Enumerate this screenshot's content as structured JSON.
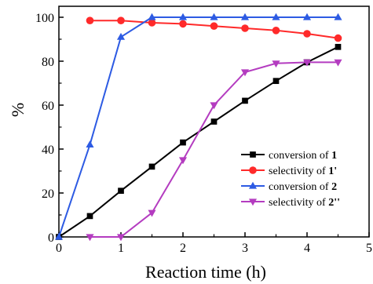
{
  "chart_data": {
    "type": "line",
    "xlabel": "Reaction time (h)",
    "ylabel": "%",
    "xlim": [
      0,
      5
    ],
    "ylim": [
      0,
      105
    ],
    "xticks": [
      0,
      1,
      2,
      3,
      4,
      5
    ],
    "yticks": [
      0,
      20,
      40,
      60,
      80,
      100
    ],
    "grid": false,
    "legend_position": "right",
    "series": [
      {
        "name": "conversion of 1",
        "label_prefix": "conversion of ",
        "label_compound": "1",
        "color": "#000000",
        "marker": "square",
        "x": [
          0,
          0.5,
          1,
          1.5,
          2,
          2.5,
          3,
          3.5,
          4,
          4.5
        ],
        "y": [
          0,
          9.5,
          21,
          32,
          43,
          52.5,
          62,
          71,
          79.5,
          86.5
        ]
      },
      {
        "name": "selectivity of 1'",
        "label_prefix": "selectivity of ",
        "label_compound": "1'",
        "color": "#ff2a2a",
        "marker": "circle",
        "x": [
          0.5,
          1,
          1.5,
          2,
          2.5,
          3,
          3.5,
          4,
          4.5
        ],
        "y": [
          98.5,
          98.5,
          97.5,
          97,
          96,
          95,
          94,
          92.5,
          90.5
        ]
      },
      {
        "name": "conversion of 2",
        "label_prefix": "conversion of ",
        "label_compound": "2",
        "color": "#2d5be3",
        "marker": "triangle-up",
        "x": [
          0,
          0.5,
          1,
          1.5,
          2,
          2.5,
          3,
          3.5,
          4,
          4.5
        ],
        "y": [
          0,
          42,
          91,
          100,
          100,
          100,
          100,
          100,
          100,
          100
        ]
      },
      {
        "name": "selectivity of 2''",
        "label_prefix": "selectivity of ",
        "label_compound": "2''",
        "color": "#b43cc0",
        "marker": "triangle-down",
        "x": [
          0.5,
          1,
          1.5,
          2,
          2.5,
          3,
          3.5,
          4,
          4.5
        ],
        "y": [
          0,
          0,
          11,
          35,
          60,
          75,
          79,
          79.5,
          79.5
        ]
      }
    ]
  }
}
